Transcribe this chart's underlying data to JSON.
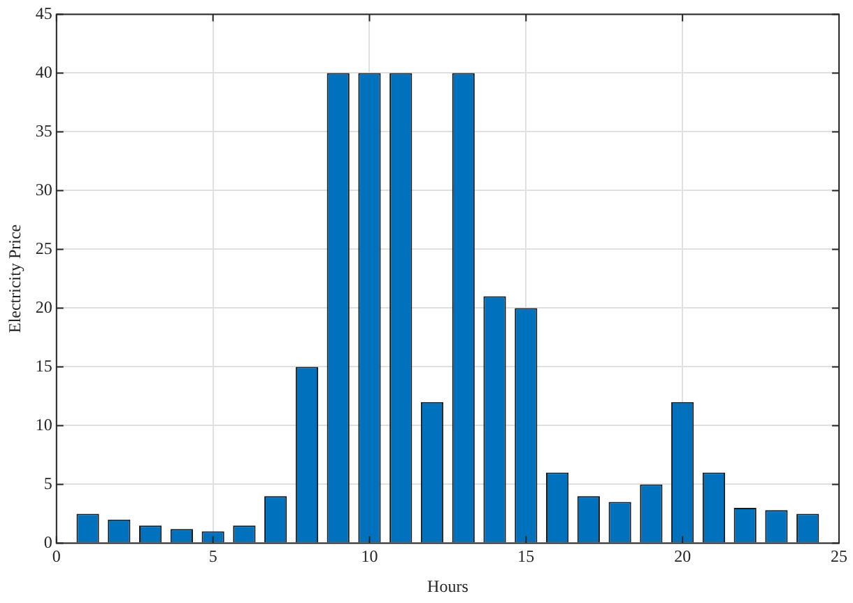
{
  "chart_data": {
    "type": "bar",
    "xlabel": "Hours",
    "ylabel": "Electricity Price",
    "x": [
      1,
      2,
      3,
      4,
      5,
      6,
      7,
      8,
      9,
      10,
      11,
      12,
      13,
      14,
      15,
      16,
      17,
      18,
      19,
      20,
      21,
      22,
      23,
      24
    ],
    "values": [
      2.5,
      2,
      1.5,
      1.2,
      1,
      1.5,
      4,
      15,
      40,
      40,
      40,
      12,
      40,
      21,
      20,
      6,
      4,
      3.5,
      5,
      12,
      6,
      3,
      2.8,
      2.5
    ],
    "color": "#0072bd",
    "xlim": [
      0,
      25
    ],
    "xticks": [
      0,
      5,
      10,
      15,
      20,
      25
    ],
    "ylim": [
      0,
      45
    ],
    "yticks": [
      0,
      5,
      10,
      15,
      20,
      25,
      30,
      35,
      40,
      45
    ],
    "grid": true
  }
}
